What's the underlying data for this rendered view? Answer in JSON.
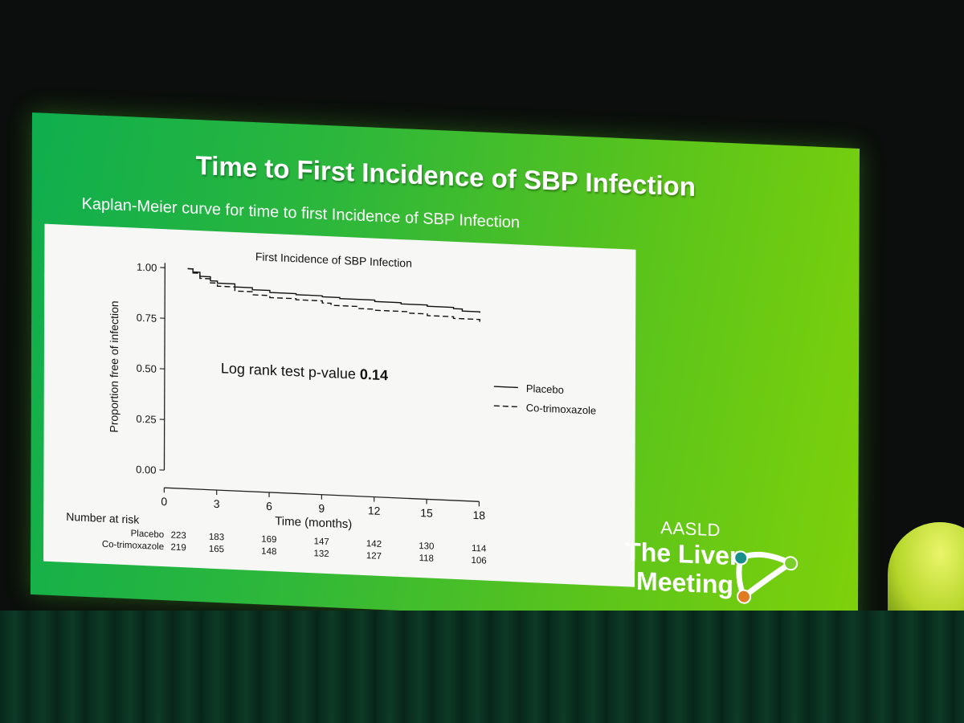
{
  "slide": {
    "title": "Time to First Incidence of SBP Infection",
    "subtitle": "Kaplan-Meier curve for time to first Incidence of SBP Infection"
  },
  "brand": {
    "org": "AASLD",
    "line1": "The Liver",
    "line2": "Meeting"
  },
  "colors": {
    "slide_green_start": "#0fae4e",
    "slide_green_end": "#7fd10a",
    "logo_teal": "#1a8f8a",
    "logo_orange": "#e07b22",
    "logo_green": "#7ccf2a"
  },
  "chart_data": {
    "type": "line",
    "title": "First Incidence of SBP Infection",
    "xlabel": "Time (months)",
    "ylabel": "Proportion free of infection",
    "xlim": [
      0,
      18
    ],
    "ylim": [
      0,
      1
    ],
    "x_ticks": [
      0,
      3,
      6,
      9,
      12,
      15,
      18
    ],
    "y_ticks": [
      "0.00",
      "0.25",
      "0.50",
      "0.75",
      "1.00"
    ],
    "annotation": {
      "text": "Log rank test p-value ",
      "value": "0.14"
    },
    "legend_position": "right",
    "series": [
      {
        "name": "Placebo",
        "line_style": "solid",
        "points": [
          [
            1.3,
            1.0
          ],
          [
            1.6,
            0.985
          ],
          [
            2.0,
            0.965
          ],
          [
            2.6,
            0.945
          ],
          [
            3.0,
            0.935
          ],
          [
            4.0,
            0.92
          ],
          [
            5.0,
            0.91
          ],
          [
            6.0,
            0.9
          ],
          [
            7.5,
            0.895
          ],
          [
            9.0,
            0.89
          ],
          [
            10.0,
            0.885
          ],
          [
            12.0,
            0.878
          ],
          [
            13.5,
            0.872
          ],
          [
            15.0,
            0.866
          ],
          [
            16.5,
            0.86
          ],
          [
            17.0,
            0.85
          ],
          [
            18.0,
            0.845
          ]
        ]
      },
      {
        "name": "Co-trimoxazole",
        "line_style": "dashed",
        "points": [
          [
            1.3,
            1.0
          ],
          [
            1.6,
            0.98
          ],
          [
            2.0,
            0.955
          ],
          [
            2.6,
            0.935
          ],
          [
            3.0,
            0.92
          ],
          [
            4.0,
            0.9
          ],
          [
            5.0,
            0.885
          ],
          [
            6.0,
            0.875
          ],
          [
            7.5,
            0.87
          ],
          [
            9.0,
            0.86
          ],
          [
            9.5,
            0.85
          ],
          [
            11.0,
            0.84
          ],
          [
            12.0,
            0.835
          ],
          [
            14.0,
            0.828
          ],
          [
            15.0,
            0.82
          ],
          [
            16.5,
            0.812
          ],
          [
            18.0,
            0.8
          ]
        ]
      }
    ],
    "risk_table": {
      "title": "Number at risk",
      "time_points": [
        0,
        3,
        6,
        9,
        12,
        15,
        18
      ],
      "rows": [
        {
          "label": "Placebo",
          "values": [
            223,
            183,
            169,
            147,
            142,
            130,
            114
          ]
        },
        {
          "label": "Co-trimoxazole",
          "values": [
            219,
            165,
            148,
            132,
            127,
            118,
            106
          ]
        }
      ]
    }
  }
}
